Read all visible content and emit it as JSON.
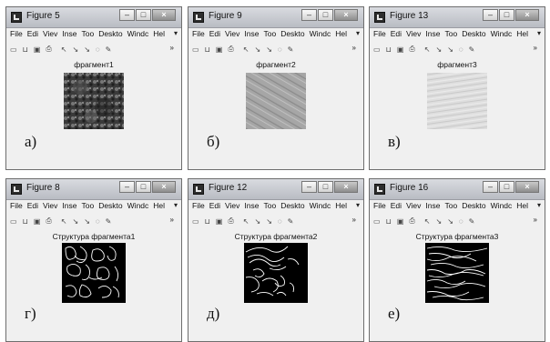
{
  "menu": [
    "File",
    "Edi",
    "Viev",
    "Inse",
    "Too",
    "Deskto",
    "Windc",
    "Hel"
  ],
  "panels": [
    {
      "window_title": "Figure 5",
      "plot_title": "фрагмент1",
      "caption": "а)",
      "image": "texture-dark"
    },
    {
      "window_title": "Figure 9",
      "plot_title": "фрагмент2",
      "caption": "б)",
      "image": "texture-mid"
    },
    {
      "window_title": "Figure 13",
      "plot_title": "фрагмент3",
      "caption": "в)",
      "image": "texture-light"
    },
    {
      "window_title": "Figure 8",
      "plot_title": "Структура фрагмента1",
      "caption": "г)",
      "image": "edges-1"
    },
    {
      "window_title": "Figure 12",
      "plot_title": "Структура фрагмента2",
      "caption": "д)",
      "image": "edges-2"
    },
    {
      "window_title": "Figure 16",
      "plot_title": "Структура фрагмента3",
      "caption": "е)",
      "image": "edges-3"
    }
  ],
  "icons": {
    "toolbar": [
      "new-figure-icon",
      "open-icon",
      "save-icon",
      "print-icon",
      "pointer-icon",
      "zoom-in-icon",
      "zoom-out-icon",
      "rotate-icon",
      "data-cursor-icon"
    ],
    "title_buttons": [
      "minimize-icon",
      "maximize-icon",
      "close-icon"
    ]
  },
  "colors": {
    "window_bg": "#f0f0f0",
    "texture_dark": "#3f3f3f",
    "edge_bg": "#000000",
    "edge_line": "#ffffff"
  }
}
